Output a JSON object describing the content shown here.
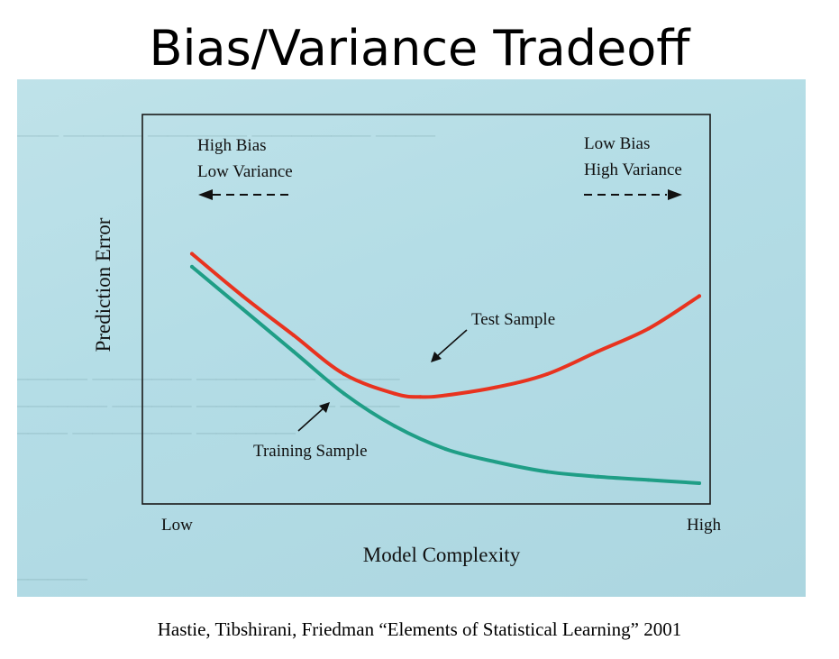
{
  "slide": {
    "title": "Bias/Variance Tradeoff",
    "caption": "Hastie, Tibshirani, Friedman “Elements of Statistical Learning” 2001"
  },
  "colors": {
    "test_curve": "#e8331f",
    "training_curve": "#1f9e86",
    "frame": "#1a1a1a",
    "photo_background": "#b4dde6"
  },
  "chart_data": {
    "type": "line",
    "title": "",
    "xlabel": "Model Complexity",
    "ylabel": "Prediction Error",
    "x_tick_labels": [
      "Low",
      "High"
    ],
    "xlim": [
      0,
      1
    ],
    "ylim": [
      0,
      1
    ],
    "grid": false,
    "regions": [
      {
        "lines": [
          "High Bias",
          "Low Variance"
        ],
        "arrow": "left",
        "side": "left"
      },
      {
        "lines": [
          "Low Bias",
          "High Variance"
        ],
        "arrow": "right",
        "side": "right"
      }
    ],
    "series": [
      {
        "name": "Test Sample",
        "color": "#e8331f",
        "x": [
          0.0,
          0.1,
          0.2,
          0.3,
          0.4,
          0.45,
          0.5,
          0.6,
          0.7,
          0.8,
          0.9,
          1.0
        ],
        "y": [
          0.73,
          0.6,
          0.48,
          0.36,
          0.3,
          0.29,
          0.295,
          0.32,
          0.36,
          0.43,
          0.5,
          0.6
        ]
      },
      {
        "name": "Training Sample",
        "color": "#1f9e86",
        "x": [
          0.0,
          0.1,
          0.2,
          0.3,
          0.4,
          0.5,
          0.6,
          0.7,
          0.8,
          0.9,
          1.0
        ],
        "y": [
          0.69,
          0.56,
          0.43,
          0.3,
          0.2,
          0.13,
          0.09,
          0.06,
          0.045,
          0.035,
          0.025
        ]
      }
    ]
  }
}
